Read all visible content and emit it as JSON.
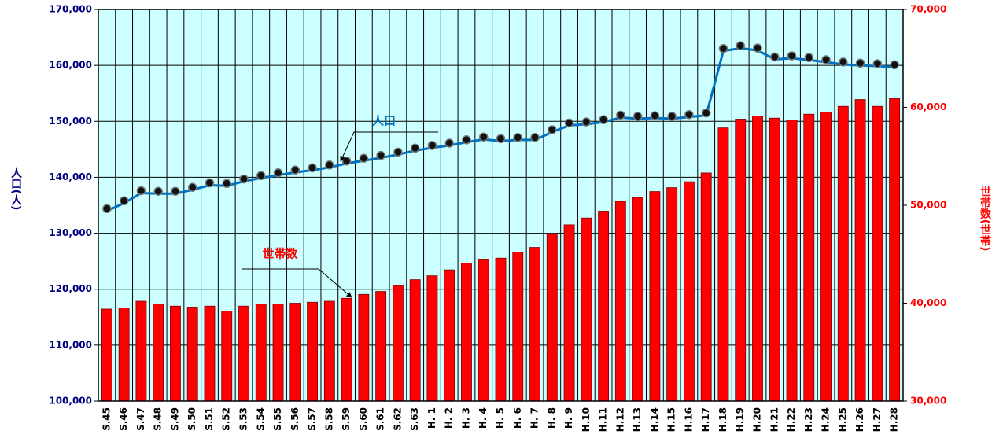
{
  "chart_data": {
    "type": "bar_line",
    "y_axis_label": "人口(人)",
    "y2_axis_label": "世帯数(世帯)",
    "categories": [
      "S.45",
      "S.46",
      "S.47",
      "S.48",
      "S.49",
      "S.50",
      "S.51",
      "S.52",
      "S.53",
      "S.54",
      "S.55",
      "S.56",
      "S.57",
      "S.58",
      "S.59",
      "S.60",
      "S.61",
      "S.62",
      "S.63",
      "H. 1",
      "H. 2",
      "H. 3",
      "H. 4",
      "H. 5",
      "H. 6",
      "H. 7",
      "H. 8",
      "H. 9",
      "H.10",
      "H.11",
      "H.12",
      "H.13",
      "H.14",
      "H.15",
      "H.16",
      "H.17",
      "H.18",
      "H.19",
      "H.20",
      "H.21",
      "H.22",
      "H.23",
      "H.24",
      "H.25",
      "H.26",
      "H.27",
      "H.28"
    ],
    "series": [
      {
        "name": "人口",
        "type": "line",
        "color": "#0070c0",
        "axis": "y",
        "values": [
          134400,
          135800,
          137600,
          137500,
          137500,
          138200,
          139000,
          138900,
          139700,
          140300,
          140800,
          141300,
          141700,
          142200,
          142900,
          143400,
          143900,
          144500,
          145200,
          145700,
          146100,
          146700,
          147200,
          146900,
          147100,
          147100,
          148500,
          149700,
          149900,
          150300,
          151100,
          150900,
          151000,
          150900,
          151200,
          151500,
          163000,
          163500,
          163100,
          161500,
          161700,
          161400,
          161000,
          160600,
          160400,
          160300,
          160100
        ]
      },
      {
        "name": "世帯数",
        "type": "bar",
        "color": "#ff0000",
        "axis": "y2",
        "values": [
          39400,
          39500,
          40200,
          39900,
          39700,
          39600,
          39700,
          39200,
          39700,
          39900,
          39900,
          40000,
          40100,
          40200,
          40500,
          40900,
          41200,
          41800,
          42400,
          42800,
          43400,
          44100,
          44500,
          44600,
          45200,
          45700,
          47100,
          48000,
          48700,
          49400,
          50400,
          50800,
          51400,
          51800,
          52400,
          53300,
          57900,
          58800,
          59100,
          58900,
          58700,
          59300,
          59500,
          60100,
          60800,
          60100,
          60900
        ]
      }
    ],
    "ylim": [
      100000,
      170000
    ],
    "yticks": [
      {
        "value": 100000,
        "label": "100,000"
      },
      {
        "value": 110000,
        "label": "110,000"
      },
      {
        "value": 120000,
        "label": "120,000"
      },
      {
        "value": 130000,
        "label": "130,000"
      },
      {
        "value": 140000,
        "label": "140,000"
      },
      {
        "value": 150000,
        "label": "150,000"
      },
      {
        "value": 160000,
        "label": "160,000"
      },
      {
        "value": 170000,
        "label": "170,000"
      }
    ],
    "y2lim": [
      30000,
      70000
    ],
    "y2ticks": [
      {
        "value": 30000,
        "label": "30,000"
      },
      {
        "value": 40000,
        "label": "40,000"
      },
      {
        "value": 50000,
        "label": "50,000"
      },
      {
        "value": 60000,
        "label": "60,000"
      },
      {
        "value": 70000,
        "label": "70,000"
      }
    ],
    "grid": true,
    "background": "#ccffff"
  }
}
